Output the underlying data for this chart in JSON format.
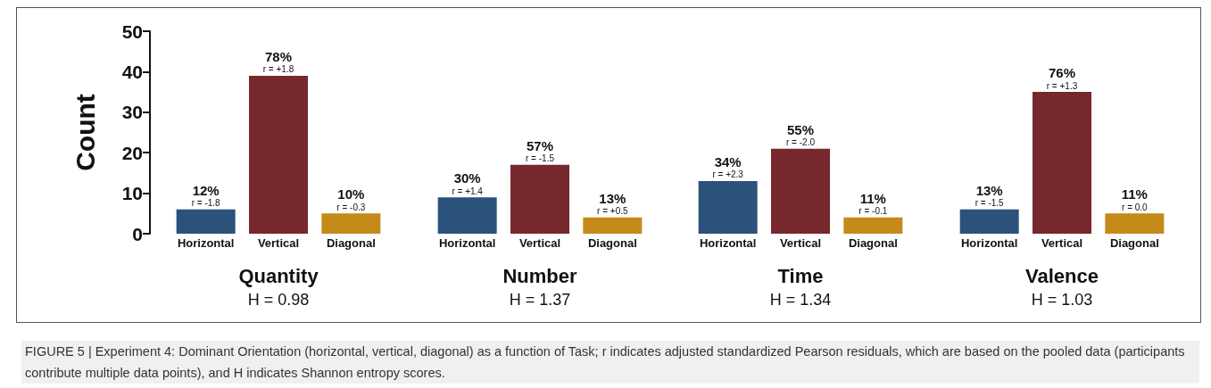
{
  "chart_data": [
    {
      "type": "bar",
      "ylabel": "Count",
      "xlabel": "Quantity",
      "categories": [
        "Horizontal",
        "Vertical",
        "Diagonal"
      ],
      "values": [
        6,
        39,
        5
      ],
      "colors": [
        "#2b527a",
        "#76282c",
        "#c48a1a"
      ],
      "ylim": [
        0,
        50
      ],
      "yticks": [
        0,
        10,
        20,
        30,
        40,
        50
      ],
      "annotations": [
        "H = 0.98",
        {
          "text": "12%",
          "x": "Horizontal",
          "y": 6
        },
        {
          "text": "r = -1.8",
          "x": "Horizontal",
          "y": 6
        },
        {
          "text": "78%",
          "x": "Vertical",
          "y": 39
        },
        {
          "text": "r = +1.8",
          "x": "Vertical",
          "y": 39
        },
        {
          "text": "10%",
          "x": "Diagonal",
          "y": 5
        },
        {
          "text": "r = -0.3",
          "x": "Diagonal",
          "y": 5
        },
        "FIGURE 5 | Experiment 4: Dominant Orientation (horizontal, vertical, diagonal) as a function of Task; r indicates adjusted standardized Pearson residuals, which are based on the pooled data (participants contribute multiple data points), and H indicates Shannon entropy scores."
      ]
    },
    {
      "type": "bar",
      "xlabel": "Number",
      "categories": [
        "Horizontal",
        "Vertical",
        "Diagonal"
      ],
      "values": [
        9,
        17,
        4
      ],
      "colors": [
        "#2b527a",
        "#76282c",
        "#c48a1a"
      ],
      "ylim": [
        0,
        50
      ],
      "yticks": [
        0,
        10,
        20,
        30,
        40,
        50
      ],
      "tick_labels": "x",
      "annotations": [
        "H = 1.37",
        {
          "text": "30%",
          "x": "Horizontal",
          "y": 9
        },
        {
          "text": "r = +1.4",
          "x": "Horizontal",
          "y": 9
        },
        {
          "text": "57%",
          "x": "Vertical",
          "y": 17
        },
        {
          "text": "r = -1.5",
          "x": "Vertical",
          "y": 17
        },
        {
          "text": "13%",
          "x": "Diagonal",
          "y": 4
        },
        {
          "text": "r = +0.5",
          "x": "Diagonal",
          "y": 4
        }
      ]
    },
    {
      "type": "bar",
      "xlabel": "Time",
      "categories": [
        "Horizontal",
        "Vertical",
        "Diagonal"
      ],
      "values": [
        13,
        21,
        4
      ],
      "colors": [
        "#2b527a",
        "#76282c",
        "#c48a1a"
      ],
      "ylim": [
        0,
        50
      ],
      "yticks": [
        0,
        10,
        20,
        30,
        40,
        50
      ],
      "tick_labels": "x",
      "annotations": [
        "H = 1.34",
        {
          "text": "34%",
          "x": "Horizontal",
          "y": 13
        },
        {
          "text": "r = +2.3",
          "x": "Horizontal",
          "y": 13
        },
        {
          "text": "55%",
          "x": "Vertical",
          "y": 21
        },
        {
          "text": "r = -2.0",
          "x": "Vertical",
          "y": 21
        },
        {
          "text": "11%",
          "x": "Diagonal",
          "y": 4
        },
        {
          "text": "r = -0.1",
          "x": "Diagonal",
          "y": 4
        }
      ]
    },
    {
      "type": "bar",
      "xlabel": "Valence",
      "categories": [
        "Horizontal",
        "Vertical",
        "Diagonal"
      ],
      "values": [
        6,
        35,
        5
      ],
      "colors": [
        "#2b527a",
        "#76282c",
        "#c48a1a"
      ],
      "ylim": [
        0,
        50
      ],
      "yticks": [
        0,
        10,
        20,
        30,
        40,
        50
      ],
      "tick_labels": "x",
      "annotations": [
        "H = 1.03",
        {
          "text": "13%",
          "x": "Horizontal",
          "y": 6
        },
        {
          "text": "r = -1.5",
          "x": "Horizontal",
          "y": 6
        },
        {
          "text": "76%",
          "x": "Vertical",
          "y": 35
        },
        {
          "text": "r = +1.3",
          "x": "Vertical",
          "y": 35
        },
        {
          "text": "11%",
          "x": "Diagonal",
          "y": 5
        },
        {
          "text": "r = 0.0",
          "x": "Diagonal",
          "y": 5
        }
      ]
    }
  ]
}
